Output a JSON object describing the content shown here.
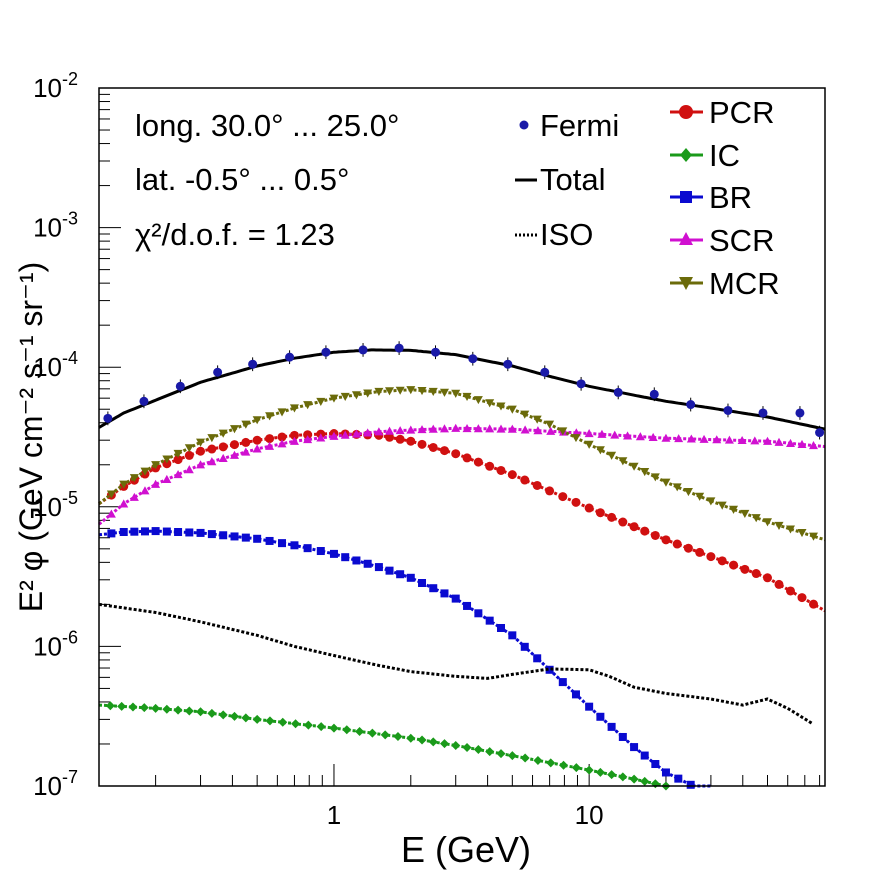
{
  "chart_data": {
    "type": "line",
    "x_scale": "log",
    "y_scale": "log",
    "xlabel": "E (GeV)",
    "ylabel": "E² φ (GeV cm⁻² s⁻¹ sr⁻¹)",
    "xlim": [
      0.12,
      84
    ],
    "ylim": [
      1e-07,
      0.01
    ],
    "x_ticks": [
      {
        "value": 1,
        "label": "1"
      },
      {
        "value": 10,
        "label": "10"
      }
    ],
    "y_ticks": [
      {
        "value": 1e-07,
        "base": "10",
        "exp": "-7"
      },
      {
        "value": 1e-06,
        "base": "10",
        "exp": "-6"
      },
      {
        "value": 1e-05,
        "base": "10",
        "exp": "-5"
      },
      {
        "value": 0.0001,
        "base": "10",
        "exp": "-4"
      },
      {
        "value": 0.001,
        "base": "10",
        "exp": "-3"
      },
      {
        "value": 0.01,
        "base": "10",
        "exp": "-2"
      }
    ],
    "annotations": [
      "long. 30.0° ... 25.0°",
      "lat. -0.5° ... 0.5°",
      "χ²/d.o.f. = 1.23"
    ],
    "legend_left": [
      {
        "name": "Fermi",
        "style": "dot",
        "color": "#1a1aa8"
      },
      {
        "name": "Total",
        "style": "solid",
        "color": "#000000"
      },
      {
        "name": "ISO",
        "style": "dotted",
        "color": "#000000"
      }
    ],
    "legend_right": [
      {
        "name": "PCR",
        "marker": "circle",
        "color": "#d01010"
      },
      {
        "name": "IC",
        "marker": "diamond",
        "color": "#1a9a1a"
      },
      {
        "name": "BR",
        "marker": "square",
        "color": "#0a0ad0"
      },
      {
        "name": "SCR",
        "marker": "triangle-up",
        "color": "#d010d0"
      },
      {
        "name": "MCR",
        "marker": "triangle-down",
        "color": "#6b6b0a"
      }
    ],
    "fermi": {
      "x": [
        0.13,
        0.18,
        0.25,
        0.35,
        0.48,
        0.67,
        0.93,
        1.3,
        1.8,
        2.5,
        3.5,
        4.8,
        6.7,
        9.3,
        13,
        18,
        25,
        35,
        48,
        67,
        80
      ],
      "y": [
        4.3e-05,
        5.7e-05,
        7.3e-05,
        9.2e-05,
        0.000105,
        0.000118,
        0.000128,
        0.000133,
        0.000137,
        0.000128,
        0.000115,
        0.000105,
        9.2e-05,
        7.6e-05,
        6.6e-05,
        6.4e-05,
        5.4e-05,
        4.9e-05,
        4.7e-05,
        4.7e-05,
        3.4e-05
      ]
    },
    "total": {
      "x": [
        0.12,
        0.15,
        0.2,
        0.3,
        0.5,
        0.7,
        1,
        1.4,
        2,
        3,
        5,
        7,
        10,
        15,
        20,
        30,
        50,
        84
      ],
      "y": [
        3.7e-05,
        4.7e-05,
        5.8e-05,
        7.8e-05,
        0.000102,
        0.000116,
        0.000128,
        0.000133,
        0.000132,
        0.000123,
        0.000102,
        8.6e-05,
        7.3e-05,
        6.3e-05,
        5.7e-05,
        5.1e-05,
        4.4e-05,
        3.6e-05
      ]
    },
    "series": [
      {
        "name": "PCR",
        "color": "#d01010",
        "marker": "circle",
        "x": [
          0.12,
          0.15,
          0.2,
          0.3,
          0.5,
          0.7,
          1,
          1.5,
          2,
          3,
          5,
          7,
          10,
          15,
          20,
          30,
          50,
          84
        ],
        "y": [
          1.05e-05,
          1.4e-05,
          1.9e-05,
          2.5e-05,
          3e-05,
          3.25e-05,
          3.35e-05,
          3.25e-05,
          2.95e-05,
          2.4e-05,
          1.7e-05,
          1.3e-05,
          9.8e-06,
          7.2e-06,
          5.8e-06,
          4.4e-06,
          3.1e-06,
          1.8e-06
        ]
      },
      {
        "name": "IC",
        "color": "#1a9a1a",
        "marker": "diamond",
        "x": [
          0.12,
          0.2,
          0.3,
          0.5,
          1,
          2,
          3,
          5,
          10,
          15,
          20
        ],
        "y": [
          3.8e-07,
          3.6e-07,
          3.4e-07,
          3e-07,
          2.6e-07,
          2.2e-07,
          1.95e-07,
          1.65e-07,
          1.3e-07,
          1.12e-07,
          1e-07
        ]
      },
      {
        "name": "BR",
        "color": "#0a0ad0",
        "marker": "square",
        "x": [
          0.12,
          0.15,
          0.2,
          0.3,
          0.5,
          0.7,
          1,
          1.5,
          2,
          3,
          5,
          7,
          10,
          15,
          20,
          25,
          30
        ],
        "y": [
          6.3e-06,
          6.6e-06,
          6.7e-06,
          6.5e-06,
          5.9e-06,
          5.3e-06,
          4.6e-06,
          3.7e-06,
          3.1e-06,
          2.2e-06,
          1.2e-06,
          6.8e-07,
          3.7e-07,
          1.9e-07,
          1.25e-07,
          1.02e-07,
          9e-08
        ]
      },
      {
        "name": "SCR",
        "color": "#d010d0",
        "marker": "triangle-up",
        "x": [
          0.12,
          0.15,
          0.2,
          0.3,
          0.5,
          0.7,
          1,
          1.5,
          2,
          3,
          5,
          10,
          20,
          50,
          84
        ],
        "y": [
          7.5e-06,
          1.05e-05,
          1.45e-05,
          2e-05,
          2.6e-05,
          2.95e-05,
          3.2e-05,
          3.45e-05,
          3.55e-05,
          3.65e-05,
          3.6e-05,
          3.35e-05,
          3.1e-05,
          2.95e-05,
          2.7e-05
        ]
      },
      {
        "name": "MCR",
        "color": "#6b6b0a",
        "marker": "triangle-down",
        "x": [
          0.12,
          0.15,
          0.2,
          0.3,
          0.5,
          0.7,
          1,
          1.5,
          2,
          3,
          5,
          7,
          10,
          15,
          20,
          30,
          50,
          84
        ],
        "y": [
          1.05e-05,
          1.45e-05,
          2e-05,
          2.9e-05,
          4.2e-05,
          5.1e-05,
          6e-05,
          6.7e-05,
          6.9e-05,
          6.5e-05,
          5e-05,
          3.9e-05,
          2.8e-05,
          1.95e-05,
          1.5e-05,
          1.1e-05,
          7.8e-06,
          5.8e-06
        ]
      },
      {
        "name": "ISO",
        "color": "#000000",
        "marker": "none",
        "style": "dotted",
        "x": [
          0.12,
          0.2,
          0.3,
          0.5,
          0.7,
          1,
          1.5,
          2,
          3,
          4,
          5,
          7,
          10,
          12,
          15,
          20,
          30,
          40,
          50,
          60,
          75
        ],
        "y": [
          2e-06,
          1.75e-06,
          1.5e-06,
          1.2e-06,
          1e-06,
          8.6e-07,
          7.3e-07,
          6.6e-07,
          6.1e-07,
          5.9e-07,
          6.3e-07,
          6.9e-07,
          6.8e-07,
          6.1e-07,
          5.1e-07,
          4.6e-07,
          4.2e-07,
          3.8e-07,
          4.2e-07,
          3.6e-07,
          2.8e-07
        ]
      }
    ]
  }
}
